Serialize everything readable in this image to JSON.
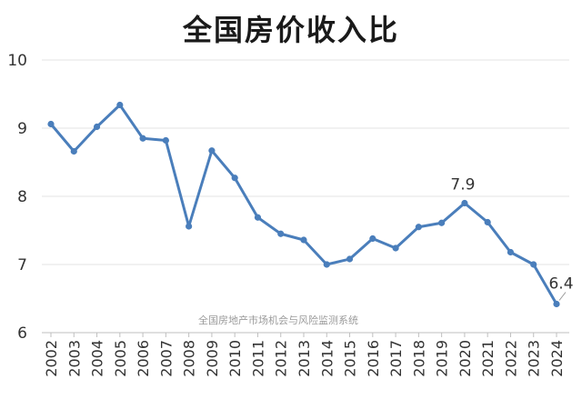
{
  "chart_data": {
    "type": "line",
    "title": "全国房价收入比",
    "watermark": "全国房地产市场机会与风险监测系统",
    "ylim": [
      6,
      10
    ],
    "yticks": [
      6,
      7,
      8,
      9,
      10
    ],
    "grid": true,
    "x": [
      "2002",
      "2003",
      "2004",
      "2005",
      "2006",
      "2007",
      "2008",
      "2009",
      "2010",
      "2011",
      "2012",
      "2013",
      "2014",
      "2015",
      "2016",
      "2017",
      "2018",
      "2019",
      "2020",
      "2021",
      "2022",
      "2023",
      "2024"
    ],
    "series": [
      {
        "color": "#4a7ebb",
        "values": [
          9.06,
          8.66,
          9.02,
          9.34,
          8.85,
          8.82,
          7.56,
          8.67,
          8.27,
          7.69,
          7.45,
          7.36,
          7.0,
          7.08,
          7.38,
          7.24,
          7.55,
          7.61,
          7.9,
          7.62,
          7.18,
          7.0,
          6.42
        ]
      }
    ],
    "annotations": [
      {
        "x": "2020",
        "text": "7.9"
      },
      {
        "x": "2024",
        "text": "6.4"
      }
    ]
  }
}
